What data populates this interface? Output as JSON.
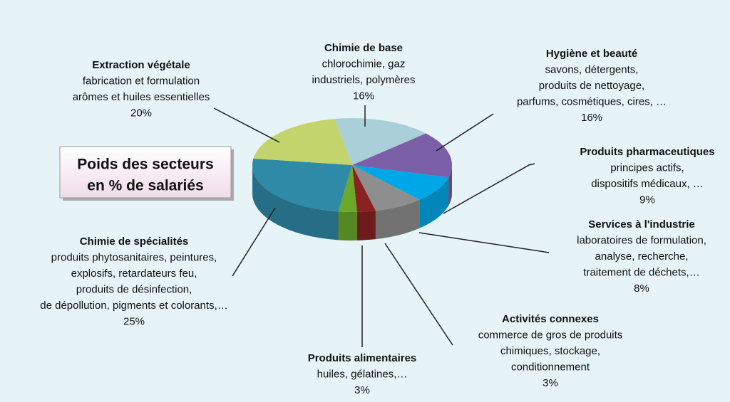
{
  "chart_data": {
    "type": "pie",
    "title": [
      "Poids des secteurs",
      "en % de salariés"
    ],
    "categories": [
      "Chimie de base",
      "Hygiène et beauté",
      "Produits pharmaceutiques",
      "Services à l'industrie",
      "Activités connexes",
      "Produits alimentaires",
      "Chimie de spécialités",
      "Extraction végétale"
    ],
    "descriptions": [
      [
        "chlorochimie, gaz",
        "industriels, polymères"
      ],
      [
        "savons, détergents,",
        "produits de nettoyage,",
        "parfums, cosmétiques, cires, …"
      ],
      [
        "principes actifs,",
        "dispositifs médicaux, …"
      ],
      [
        "laboratoires de formulation,",
        "analyse, recherche,",
        "traitement de  déchets,…"
      ],
      [
        "commerce de gros de produits",
        "chimiques, stockage,",
        "conditionnement"
      ],
      [
        "huiles, gélatines,…"
      ],
      [
        "produits phytosanitaires, peintures,",
        "explosifs, retardateurs feu,",
        "produits de désinfection,",
        "de dépollution, pigments et colorants,…"
      ],
      [
        "fabrication et formulation",
        "arômes et huiles essentielles"
      ]
    ],
    "values": [
      16,
      16,
      9,
      8,
      3,
      3,
      25,
      20
    ],
    "value_labels": [
      "16%",
      "16%",
      "9%",
      "8%",
      "3%",
      "3%",
      "25%",
      "20%"
    ],
    "colors": [
      "#a9d0d8",
      "#7a5ea6",
      "#00a7e6",
      "#8e8e8e",
      "#8a2222",
      "#6aa92a",
      "#2e8aa6",
      "#c4d46c"
    ]
  }
}
